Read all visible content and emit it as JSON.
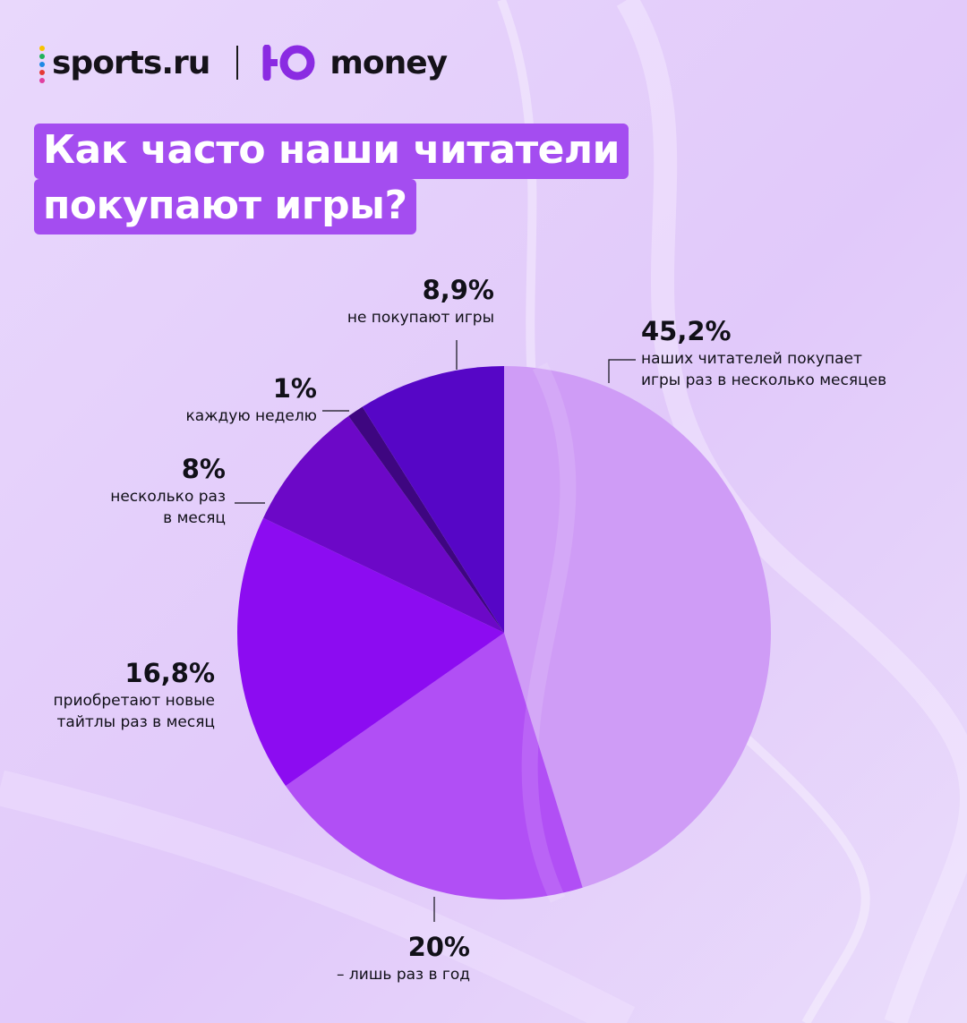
{
  "header": {
    "sports_logo_text": "sports.ru",
    "sports_logo_dots": [
      "#f7c300",
      "#20b15a",
      "#1e88e5",
      "#e53935",
      "#e040a0"
    ],
    "money_logo_text": "money",
    "money_logo_mark": "ЮО",
    "money_logo_color": "#8a2be2"
  },
  "title": {
    "line1": "Как часто наши читатели",
    "line2": "покупают игры?",
    "bg_color": "#a44df0"
  },
  "chart_data": {
    "type": "pie",
    "title": "Как часто наши читатели покупают игры?",
    "unit": "%",
    "slices": [
      {
        "value": 45.2,
        "value_label": "45,2%",
        "label_lines": [
          "наших читателей покупает",
          "игры раз в несколько месяцев"
        ],
        "color": "#cf9cf6"
      },
      {
        "value": 20,
        "value_label": "20%",
        "label_lines": [
          "– лишь раз в год"
        ],
        "color": "#b14ff5"
      },
      {
        "value": 16.8,
        "value_label": "16,8%",
        "label_lines": [
          "приобретают новые",
          "тайтлы раз в месяц"
        ],
        "color": "#8c0cf1"
      },
      {
        "value": 8,
        "value_label": "8%",
        "label_lines": [
          "несколько раз",
          "в месяц"
        ],
        "color": "#6c08c7"
      },
      {
        "value": 1,
        "value_label": "1%",
        "label_lines": [
          "каждую неделю"
        ],
        "color": "#3e0680"
      },
      {
        "value": 8.9,
        "value_label": "8,9%",
        "label_lines": [
          "не покупают игры"
        ],
        "color": "#5606c6"
      }
    ]
  }
}
